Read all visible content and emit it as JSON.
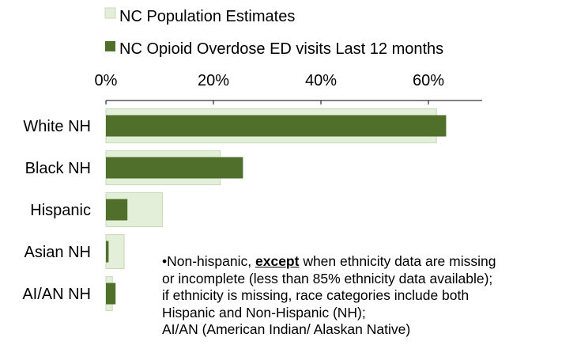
{
  "chart_data": {
    "type": "bar",
    "orientation": "horizontal",
    "categories": [
      "White NH",
      "Black NH",
      "Hispanic",
      "Asian NH",
      "AI/AN NH"
    ],
    "series": [
      {
        "name": "NC Population Estimates",
        "values": [
          61.5,
          21.3,
          10.5,
          3.4,
          1.2
        ],
        "color": "#e4efd9"
      },
      {
        "name": "NC Opioid Overdose ED visits Last 12 months",
        "values": [
          63.3,
          25.5,
          4.0,
          0.5,
          1.8
        ],
        "color": "#4f6f2b"
      }
    ],
    "xaxis": {
      "position": "top",
      "ticks": [
        0,
        20,
        40,
        60
      ],
      "tick_labels": [
        "0%",
        "20%",
        "40%",
        "60%"
      ],
      "xlim": [
        0,
        70
      ]
    },
    "legend": {
      "placement": "top"
    },
    "grid": false
  },
  "footnote": {
    "line1_prefix": "•Non-hispanic, ",
    "line1_emph": "except",
    "line1_suffix": " when ethnicity data are missing",
    "line2": "or incomplete (less than 85% ethnicity data available);",
    "line3": "if ethnicity is missing, race categories include both",
    "line4": "Hispanic and Non-Hispanic (NH);",
    "line5": "AI/AN (American Indian/ Alaskan Native)"
  }
}
